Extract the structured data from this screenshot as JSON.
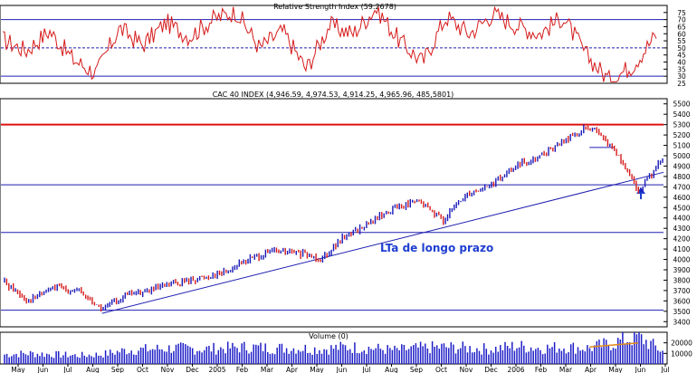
{
  "chart_data": [
    {
      "type": "line",
      "title": "Relative Strength Index (59.2678)",
      "ylim": [
        25,
        80
      ],
      "y_ticks": [
        75,
        70,
        65,
        60,
        55,
        50,
        45,
        40,
        35,
        30,
        25
      ],
      "reference_lines": [
        {
          "y": 70,
          "style": "solid",
          "color": "#1f1fb0"
        },
        {
          "y": 50,
          "style": "dashed",
          "color": "#1f1fb0"
        },
        {
          "y": 30,
          "style": "solid",
          "color": "#1f1fb0"
        }
      ],
      "series": [
        {
          "color": "#d61a1a",
          "points": [
            {
              "x": "Apr 2004",
              "y": 56
            },
            {
              "x": "May 2004",
              "y": 48
            },
            {
              "x": "Jun 2004",
              "y": 62
            },
            {
              "x": "Jul 2004",
              "y": 42
            },
            {
              "x": "Aug 2004",
              "y": 32
            },
            {
              "x": "Sep 2004",
              "y": 64
            },
            {
              "x": "Oct 2004",
              "y": 52
            },
            {
              "x": "Nov 2004",
              "y": 68
            },
            {
              "x": "Dec 2004",
              "y": 58
            },
            {
              "x": "Jan 2005",
              "y": 70
            },
            {
              "x": "Feb 2005",
              "y": 76
            },
            {
              "x": "Mar 2005",
              "y": 50
            },
            {
              "x": "Apr 2005",
              "y": 62
            },
            {
              "x": "May 2005",
              "y": 35
            },
            {
              "x": "Jun 2005",
              "y": 66
            },
            {
              "x": "Jul 2005",
              "y": 60
            },
            {
              "x": "Aug 2005",
              "y": 78
            },
            {
              "x": "Sep 2005",
              "y": 55
            },
            {
              "x": "Oct 2005",
              "y": 40
            },
            {
              "x": "Nov 2005",
              "y": 72
            },
            {
              "x": "Dec 2005",
              "y": 60
            },
            {
              "x": "Jan 2006",
              "y": 74
            },
            {
              "x": "Feb 2006",
              "y": 66
            },
            {
              "x": "Mar 2006",
              "y": 60
            },
            {
              "x": "Apr 2006",
              "y": 72
            },
            {
              "x": "May 2006",
              "y": 45
            },
            {
              "x": "May 2006 end",
              "y": 27
            },
            {
              "x": "Jun 2006",
              "y": 38
            },
            {
              "x": "Jul 2006",
              "y": 59.27
            }
          ]
        }
      ]
    },
    {
      "type": "candlestick",
      "title": "CAC 40 INDEX (4,946.59, 4,974.53, 4,914.25, 4,965.96, 485,5801)",
      "ylim": [
        3350,
        5550
      ],
      "y_ticks": [
        5500,
        5400,
        5300,
        5200,
        5100,
        5000,
        4900,
        4800,
        4700,
        4600,
        4500,
        4400,
        4300,
        4200,
        4100,
        4000,
        3900,
        3800,
        3700,
        3600,
        3500,
        3400
      ],
      "annotations": [
        "LTa de longo prazo"
      ],
      "horizontal_lines": [
        {
          "y": 5300,
          "color": "#e01010"
        },
        {
          "y": 4720,
          "color": "#1f1fb0"
        },
        {
          "y": 4260,
          "color": "#1f1fb0"
        },
        {
          "y": 3510,
          "color": "#1f1fb0"
        }
      ],
      "short_lines": [
        {
          "y": 5080,
          "from": "Apr 2006",
          "to": "May 2006",
          "color": "#1f1fb0"
        }
      ],
      "trend_line": {
        "from": {
          "x": "Aug 2004",
          "y": 3480
        },
        "to": {
          "x": "Jul 2006",
          "y": 4840
        },
        "color": "#1f1fb0"
      },
      "series": [
        {
          "name": "CAC 40 INDEX",
          "close": [
            {
              "x": "Apr 2004",
              "y": 3780
            },
            {
              "x": "May 2004",
              "y": 3600
            },
            {
              "x": "Jun 2004",
              "y": 3730
            },
            {
              "x": "Jul 2004",
              "y": 3700
            },
            {
              "x": "Aug 2004",
              "y": 3520
            },
            {
              "x": "Sep 2004",
              "y": 3660
            },
            {
              "x": "Oct 2004",
              "y": 3700
            },
            {
              "x": "Nov 2004",
              "y": 3770
            },
            {
              "x": "Dec 2004",
              "y": 3820
            },
            {
              "x": "Jan 2005",
              "y": 3880
            },
            {
              "x": "Feb 2005",
              "y": 4000
            },
            {
              "x": "Mar 2005",
              "y": 4080
            },
            {
              "x": "Apr 2005",
              "y": 4060
            },
            {
              "x": "May 2005",
              "y": 4010
            },
            {
              "x": "Jun 2005",
              "y": 4230
            },
            {
              "x": "Jul 2005",
              "y": 4350
            },
            {
              "x": "Aug 2005",
              "y": 4500
            },
            {
              "x": "Sep 2005",
              "y": 4560
            },
            {
              "x": "Oct 2005",
              "y": 4380
            },
            {
              "x": "Nov 2005",
              "y": 4640
            },
            {
              "x": "Dec 2005",
              "y": 4720
            },
            {
              "x": "Jan 2006",
              "y": 4900
            },
            {
              "x": "Feb 2006",
              "y": 5000
            },
            {
              "x": "Mar 2006",
              "y": 5150
            },
            {
              "x": "Apr 2006",
              "y": 5280
            },
            {
              "x": "May 2006",
              "y": 5060
            },
            {
              "x": "Jun 2006",
              "y": 4660
            },
            {
              "x": "Jul 2006",
              "y": 4966
            }
          ]
        }
      ]
    },
    {
      "type": "bar",
      "title": "Volume (0)",
      "ylim": [
        0,
        30000
      ],
      "y_ticks": [
        20000,
        10000
      ],
      "series": [
        {
          "name": "Volume",
          "color": "#1f1fc8",
          "values": [
            {
              "x": "Apr 2004",
              "y": 9000
            },
            {
              "x": "May 2004",
              "y": 10000
            },
            {
              "x": "Jun 2004",
              "y": 9000
            },
            {
              "x": "Jul 2004",
              "y": 8000
            },
            {
              "x": "Aug 2004",
              "y": 9000
            },
            {
              "x": "Sep 2004",
              "y": 13000
            },
            {
              "x": "Oct 2004",
              "y": 14000
            },
            {
              "x": "Nov 2004",
              "y": 15000
            },
            {
              "x": "Dec 2004",
              "y": 14000
            },
            {
              "x": "Jan 2005",
              "y": 15000
            },
            {
              "x": "Feb 2005",
              "y": 16000
            },
            {
              "x": "Mar 2005",
              "y": 15000
            },
            {
              "x": "Apr 2005",
              "y": 15000
            },
            {
              "x": "May 2005",
              "y": 14000
            },
            {
              "x": "Jun 2005",
              "y": 16000
            },
            {
              "x": "Jul 2005",
              "y": 15000
            },
            {
              "x": "Aug 2005",
              "y": 13000
            },
            {
              "x": "Sep 2005",
              "y": 15000
            },
            {
              "x": "Oct 2005",
              "y": 16000
            },
            {
              "x": "Nov 2005",
              "y": 15000
            },
            {
              "x": "Dec 2005",
              "y": 14000
            },
            {
              "x": "Jan 2006",
              "y": 17000
            },
            {
              "x": "Feb 2006",
              "y": 15000
            },
            {
              "x": "Mar 2006",
              "y": 16000
            },
            {
              "x": "Apr 2006",
              "y": 15000
            },
            {
              "x": "May 2006",
              "y": 20000
            },
            {
              "x": "Jun 2006",
              "y": 26000
            },
            {
              "x": "Jul 2006",
              "y": 12000
            }
          ]
        },
        {
          "name": "Volume average",
          "color": "#e08a1a",
          "values": [
            {
              "x": "Apr 2006",
              "y": 16000
            },
            {
              "x": "May 2006",
              "y": 18000
            },
            {
              "x": "Jun 2006",
              "y": 20000
            }
          ]
        }
      ]
    }
  ],
  "x_axis": {
    "month_labels": [
      "May",
      "Jun",
      "Jul",
      "Aug",
      "Sep",
      "Oct",
      "Nov",
      "Dec",
      "2005",
      "Feb",
      "Mar",
      "Apr",
      "May",
      "Jun",
      "Jul",
      "Aug",
      "Sep",
      "Oct",
      "Nov",
      "Dec",
      "2006",
      "Feb",
      "Mar",
      "Apr",
      "May",
      "Jun",
      "Jul"
    ]
  },
  "colors": {
    "up_bar": "#1a1ab8",
    "down_bar": "#d61a1a",
    "frame": "#000000",
    "guide_line": "#1f1fb0",
    "resistance": "#e01010",
    "annotation_text": "#1f3fd0"
  }
}
